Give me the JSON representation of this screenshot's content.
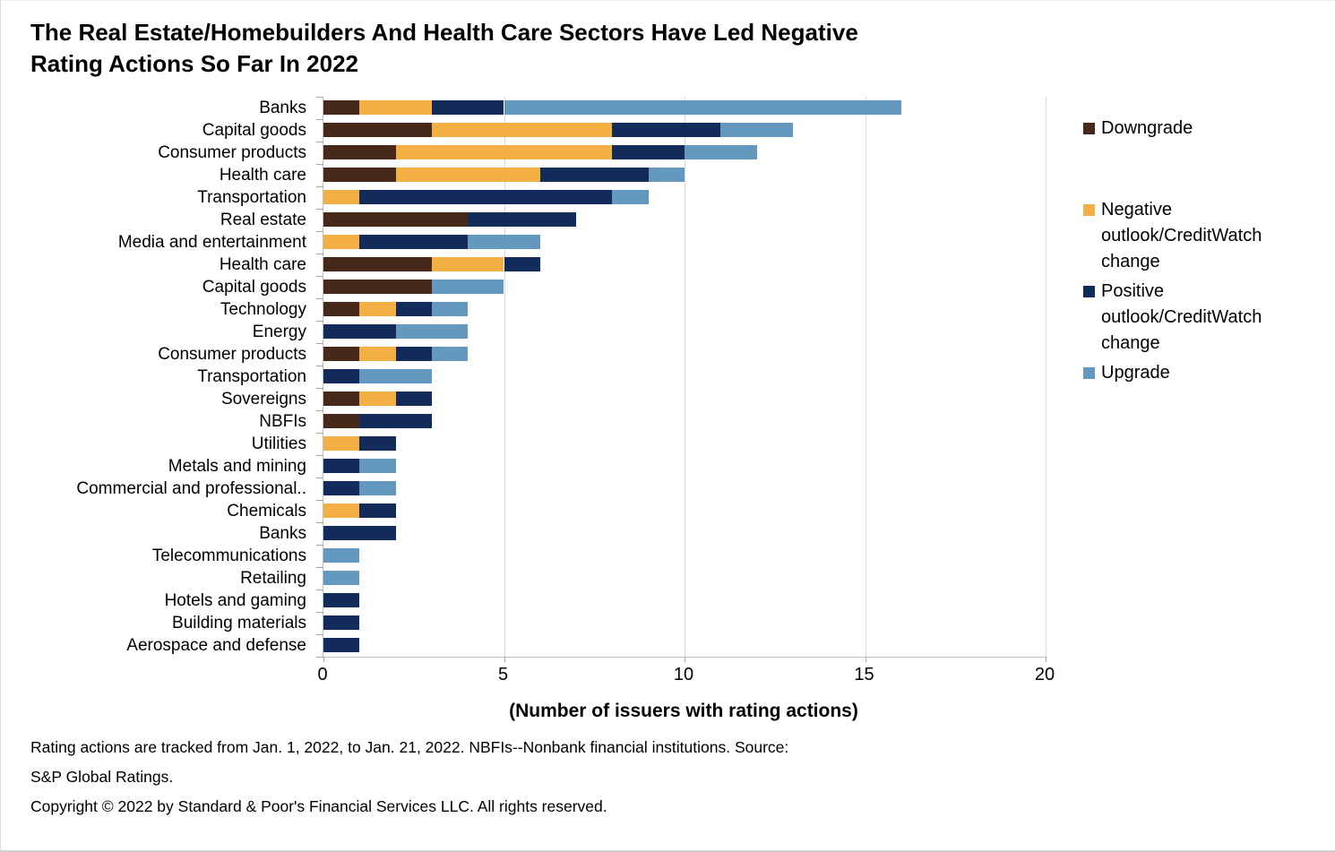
{
  "title_lines": [
    "The Real Estate/Homebuilders And Health Care Sectors Have Led Negative",
    "Rating Actions So Far In 2022"
  ],
  "footnote_lines": [
    "Rating actions are tracked from Jan. 1, 2022, to Jan. 21, 2022. NBFIs--Nonbank financial institutions. Source:",
    "S&P Global Ratings.",
    "Copyright © 2022 by Standard & Poor's Financial Services LLC. All rights reserved."
  ],
  "chart_data": {
    "type": "bar",
    "orientation": "horizontal",
    "stacked": true,
    "title": "The Real Estate/Homebuilders And Health Care Sectors Have Led Negative Rating Actions So Far In 2022",
    "xlabel": "(Number of issuers with rating actions)",
    "ylabel": "",
    "xlim": [
      0,
      20
    ],
    "xticks": [
      0,
      5,
      10,
      15,
      20
    ],
    "grid": "vertical",
    "legend_position": "right",
    "categories": [
      "Banks",
      "Capital goods",
      "Consumer products",
      "Health care",
      "Transportation",
      "Real estate",
      "Media and entertainment",
      "Health care",
      "Capital goods",
      "Technology",
      "Energy",
      "Consumer products",
      "Transportation",
      "Sovereigns",
      "NBFIs",
      "Utilities",
      "Metals and mining",
      "Commercial and professional..",
      "Chemicals",
      "Banks",
      "Telecommunications",
      "Retailing",
      "Hotels and gaming",
      "Building materials",
      "Aerospace and defense"
    ],
    "series": [
      {
        "name": "Downgrade",
        "color": "#47291B",
        "values": [
          1,
          3,
          2,
          2,
          0,
          4,
          0,
          3,
          3,
          1,
          0,
          1,
          0,
          1,
          1,
          0,
          0,
          0,
          0,
          0,
          0,
          0,
          0,
          0,
          0
        ]
      },
      {
        "name": "Negative outlook/CreditWatch change",
        "color": "#F1AF44",
        "values": [
          2,
          5,
          6,
          4,
          1,
          0,
          1,
          2,
          0,
          1,
          0,
          1,
          0,
          1,
          0,
          1,
          0,
          0,
          1,
          0,
          0,
          0,
          0,
          0,
          0
        ]
      },
      {
        "name": "Positive outlook/CreditWatch change",
        "color": "#122B5B",
        "values": [
          2,
          3,
          2,
          3,
          7,
          3,
          3,
          1,
          0,
          1,
          2,
          1,
          1,
          1,
          2,
          1,
          1,
          1,
          1,
          2,
          0,
          0,
          1,
          1,
          1
        ]
      },
      {
        "name": "Upgrade",
        "color": "#6598BE",
        "values": [
          11,
          2,
          2,
          1,
          1,
          0,
          2,
          0,
          2,
          1,
          2,
          1,
          2,
          0,
          0,
          0,
          1,
          1,
          0,
          0,
          1,
          1,
          0,
          0,
          0
        ]
      }
    ],
    "totals": [
      16,
      13,
      12,
      10,
      9,
      7,
      6,
      6,
      5,
      4,
      4,
      4,
      3,
      3,
      3,
      2,
      2,
      2,
      2,
      2,
      1,
      1,
      1,
      1,
      1
    ]
  }
}
